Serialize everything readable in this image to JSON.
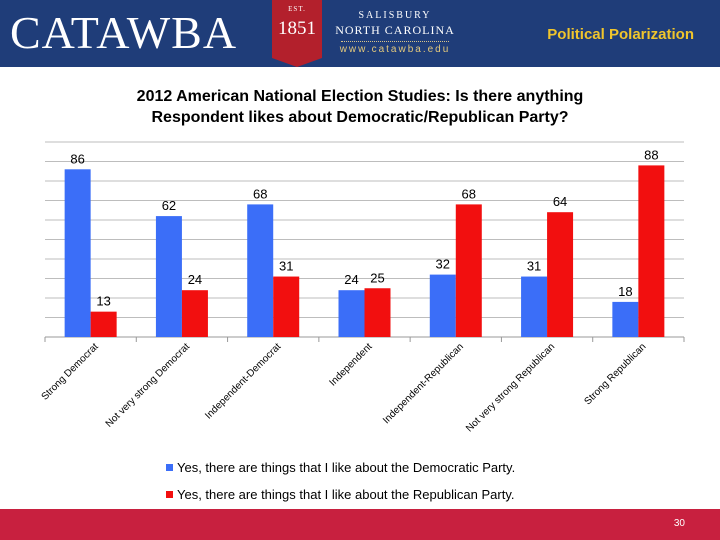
{
  "header": {
    "logo_text": "CATAWBA",
    "seal_est": "EST.",
    "seal_year": "1851",
    "location_line1": "SALISBURY",
    "location_line2": "NORTH CAROLINA",
    "website": "www.catawba.edu",
    "section_title": "Political Polarization"
  },
  "colors": {
    "header_bg": "#1f3d79",
    "dem_bar": "#3b6ef8",
    "rep_bar": "#f20f0f",
    "footer_bg": "#c8203f",
    "accent_gold": "#f0c52c"
  },
  "chart_data": {
    "type": "bar",
    "title_line1": "2012 American National Election Studies: Is there anything",
    "title_line2": "Respondent likes about Democratic/Republican Party?",
    "categories": [
      "Strong Democrat",
      "Not very strong Democrat",
      "Independent-Democrat",
      "Independent",
      "Independent-Republican",
      "Not very strong Republican",
      "Strong Republican"
    ],
    "series": [
      {
        "name": "Yes, there are things that I like about the Democratic Party.",
        "color": "#3b6ef8",
        "values": [
          86,
          62,
          68,
          24,
          32,
          31,
          18
        ]
      },
      {
        "name": "Yes, there are things that I like about the Republican Party.",
        "color": "#f20f0f",
        "values": [
          13,
          24,
          31,
          25,
          68,
          64,
          88
        ]
      }
    ],
    "ylim": [
      0,
      100
    ],
    "grid": true,
    "legend_position": "bottom",
    "xlabel": "",
    "ylabel": ""
  },
  "footer": {
    "page_number": "30"
  }
}
